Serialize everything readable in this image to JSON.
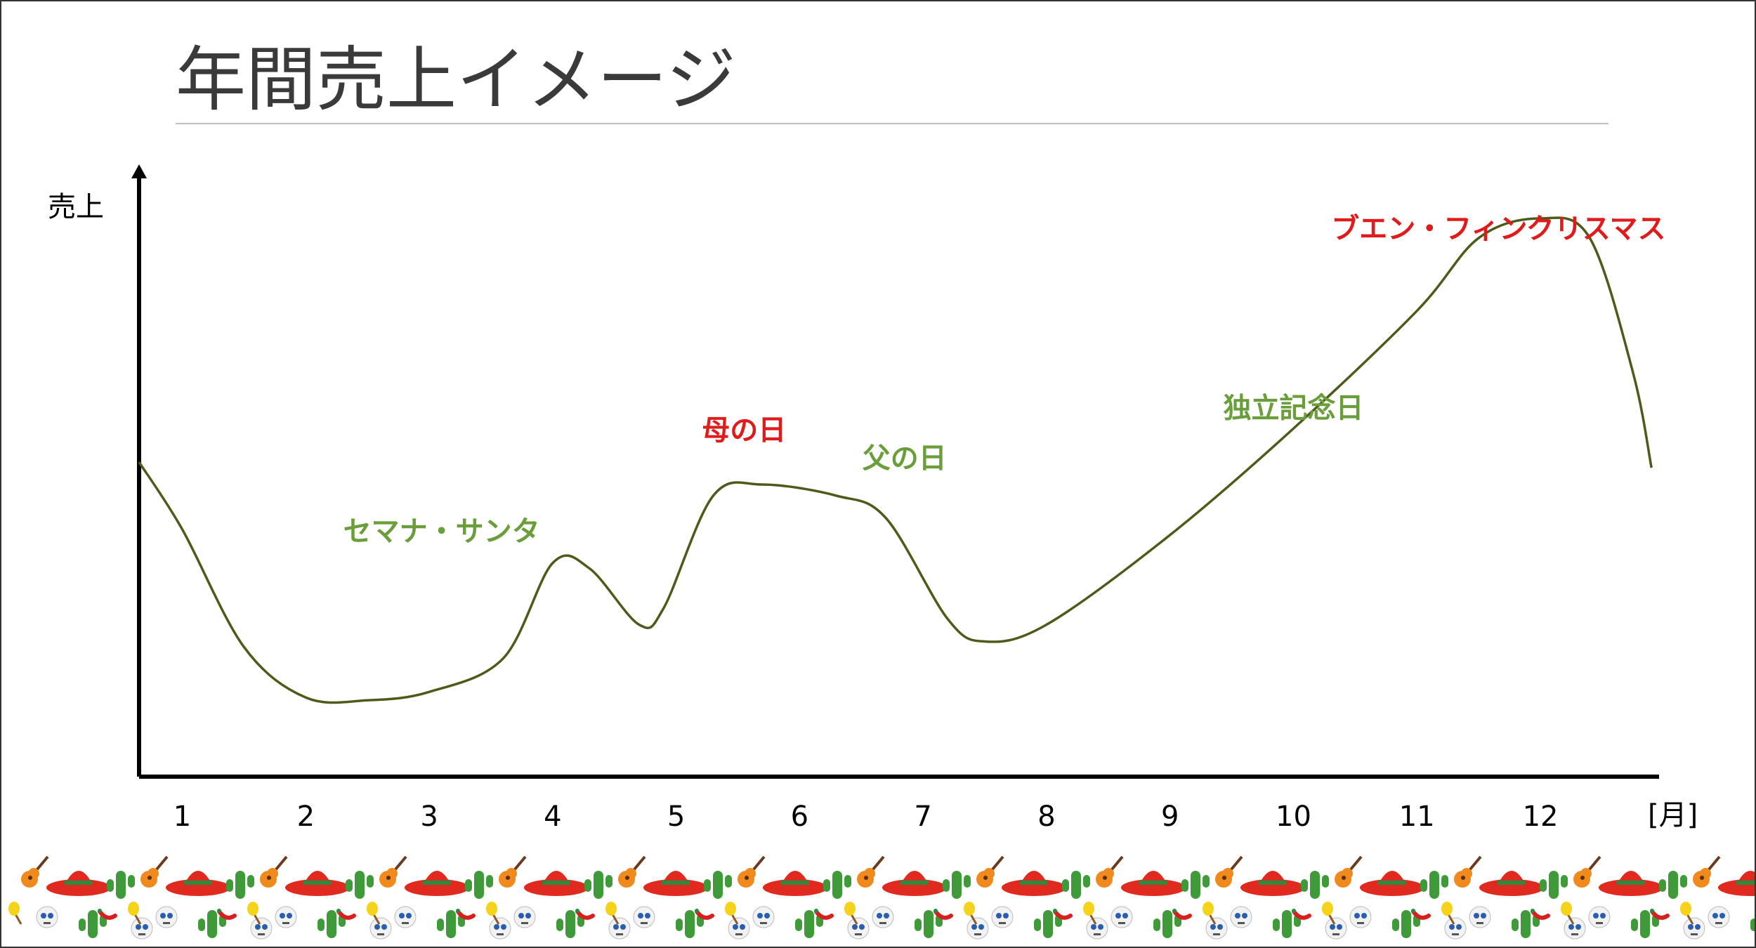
{
  "chart_data": {
    "type": "line",
    "title": "年間売上イメージ",
    "ylabel": "売上",
    "xlabel": "[月]",
    "categories": [
      "1",
      "2",
      "3",
      "4",
      "5",
      "6",
      "7",
      "8",
      "9",
      "10",
      "11",
      "12"
    ],
    "xlim": [
      0.65,
      12.95
    ],
    "ylim": [
      0,
      100
    ],
    "series": [
      {
        "values": [
          44,
          15,
          16,
          38,
          27,
          52,
          46,
          24,
          43,
          62,
          86,
          99
        ],
        "color": "#4e5a1a"
      }
    ],
    "curve_points": [
      [
        0.65,
        56
      ],
      [
        1.0,
        44
      ],
      [
        1.5,
        23
      ],
      [
        2.0,
        14
      ],
      [
        2.5,
        13.5
      ],
      [
        3.0,
        15
      ],
      [
        3.6,
        21
      ],
      [
        4.0,
        38
      ],
      [
        4.3,
        37
      ],
      [
        4.7,
        27
      ],
      [
        4.9,
        30
      ],
      [
        5.3,
        50
      ],
      [
        5.7,
        52
      ],
      [
        6.3,
        50
      ],
      [
        6.7,
        46
      ],
      [
        7.2,
        28
      ],
      [
        7.5,
        24
      ],
      [
        8.0,
        27
      ],
      [
        9.0,
        43
      ],
      [
        10.0,
        62
      ],
      [
        11.0,
        83
      ],
      [
        11.5,
        96
      ],
      [
        12.0,
        99.5
      ],
      [
        12.4,
        96
      ],
      [
        12.75,
        72
      ],
      [
        12.9,
        55
      ]
    ],
    "annotations": [
      {
        "text": "セマナ・サンタ",
        "x": 3.1,
        "y": 42,
        "color": "#6a9e3a"
      },
      {
        "text": "母の日",
        "x": 5.55,
        "y": 60,
        "color": "#e01b1b"
      },
      {
        "text": "父の日",
        "x": 6.85,
        "y": 55,
        "color": "#6a9e3a"
      },
      {
        "text": "独立記念日",
        "x": 10.0,
        "y": 64,
        "color": "#6a9e3a"
      },
      {
        "text": "ブエン・フィン",
        "x": 11.1,
        "y": 96,
        "color": "#e01b1b"
      },
      {
        "text": "クリスマス",
        "x": 12.45,
        "y": 96,
        "color": "#e01b1b"
      }
    ],
    "grid": false,
    "legend": "none"
  },
  "colors": {
    "axis": "#000000",
    "line": "#4e5a1a",
    "title": "#3a3a3a",
    "divider": "#bfbfbf",
    "green_label": "#6a9e3a",
    "red_label": "#e01b1b"
  },
  "decoration": {
    "motifs": [
      "guitar-icon",
      "sombrero-icon",
      "cactus-icon",
      "skull-icon",
      "maraca-icon",
      "chili-icon"
    ]
  }
}
